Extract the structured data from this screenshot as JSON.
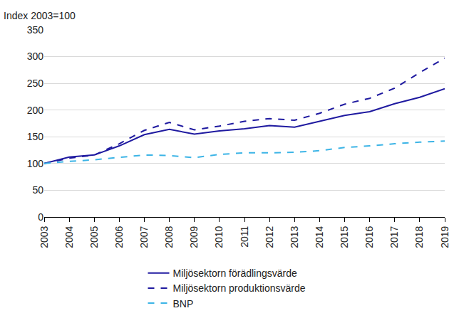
{
  "chart_data": {
    "type": "line",
    "y_label": "Index 2003=100",
    "categories": [
      "2003",
      "2004",
      "2005",
      "2006",
      "2007",
      "2008",
      "2009",
      "2010",
      "2011",
      "2012",
      "2013",
      "2014",
      "2015",
      "2016",
      "2017",
      "2018",
      "2019"
    ],
    "series": [
      {
        "name": "Miljösektorn förädlingsvärde",
        "color": "#1f1aa0",
        "line_style": "solid",
        "values": [
          100,
          112,
          116,
          133,
          154,
          164,
          155,
          161,
          165,
          171,
          168,
          179,
          190,
          197,
          212,
          224,
          240
        ]
      },
      {
        "name": "Miljösektorn produktionsvärde",
        "color": "#1f1aa0",
        "line_style": "dash",
        "values": [
          100,
          110,
          116,
          137,
          162,
          177,
          163,
          170,
          179,
          184,
          181,
          194,
          211,
          222,
          241,
          270,
          297
        ]
      },
      {
        "name": "BNP",
        "color": "#3cb4e6",
        "line_style": "dash",
        "values": [
          100,
          104,
          107,
          111,
          116,
          115,
          111,
          117,
          120,
          120,
          121,
          124,
          130,
          133,
          137,
          140,
          142
        ]
      }
    ],
    "ylim": [
      0,
      350
    ],
    "yticks": [
      0,
      50,
      100,
      150,
      200,
      250,
      300,
      350
    ],
    "grid": true,
    "legend": "bottom"
  }
}
